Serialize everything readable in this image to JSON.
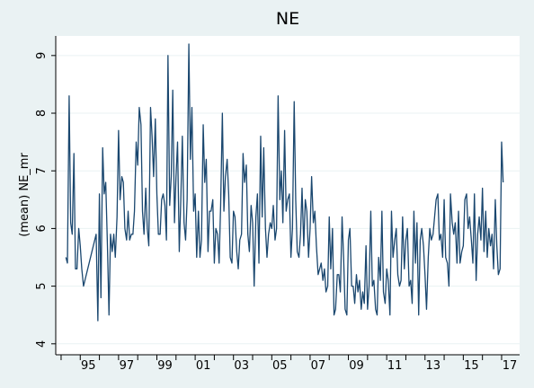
{
  "chart_data": {
    "type": "line",
    "title": "NE",
    "ylabel": "(mean) NE_mr",
    "x": [
      1994.25,
      1994.33,
      1994.42,
      1994.5,
      1994.58,
      1994.67,
      1994.75,
      1994.83,
      1994.92,
      1995.0,
      1995.08,
      1995.17,
      1995.83,
      1995.92,
      1996.0,
      1996.08,
      1996.17,
      1996.25,
      1996.33,
      1996.42,
      1996.5,
      1996.58,
      1996.67,
      1996.75,
      1996.83,
      1996.92,
      1997.0,
      1997.08,
      1997.17,
      1997.25,
      1997.33,
      1997.42,
      1997.5,
      1997.58,
      1997.67,
      1997.75,
      1997.83,
      1997.92,
      1998.0,
      1998.08,
      1998.17,
      1998.25,
      1998.33,
      1998.42,
      1998.5,
      1998.58,
      1998.67,
      1998.75,
      1998.83,
      1998.92,
      1999.0,
      1999.08,
      1999.17,
      1999.25,
      1999.33,
      1999.42,
      1999.5,
      1999.58,
      1999.67,
      1999.75,
      1999.83,
      1999.92,
      2000.0,
      2000.08,
      2000.17,
      2000.25,
      2000.33,
      2000.42,
      2000.5,
      2000.58,
      2000.67,
      2000.75,
      2000.83,
      2000.92,
      2001.0,
      2001.08,
      2001.17,
      2001.25,
      2001.33,
      2001.42,
      2001.5,
      2001.58,
      2001.67,
      2001.75,
      2001.83,
      2001.92,
      2002.0,
      2002.08,
      2002.17,
      2002.25,
      2002.33,
      2002.42,
      2002.5,
      2002.58,
      2002.67,
      2002.75,
      2002.83,
      2002.92,
      2003.0,
      2003.08,
      2003.17,
      2003.25,
      2003.33,
      2003.42,
      2003.5,
      2003.58,
      2003.67,
      2003.75,
      2003.83,
      2003.92,
      2004.0,
      2004.08,
      2004.17,
      2004.25,
      2004.33,
      2004.42,
      2004.5,
      2004.58,
      2004.67,
      2004.75,
      2004.83,
      2004.92,
      2005.0,
      2005.08,
      2005.17,
      2005.25,
      2005.33,
      2005.42,
      2005.5,
      2005.58,
      2005.67,
      2005.75,
      2005.83,
      2005.92,
      2006.0,
      2006.08,
      2006.17,
      2006.25,
      2006.33,
      2006.42,
      2006.5,
      2006.58,
      2006.67,
      2006.75,
      2006.83,
      2006.92,
      2007.0,
      2007.08,
      2007.17,
      2007.25,
      2007.33,
      2007.42,
      2007.5,
      2007.58,
      2007.67,
      2007.75,
      2007.83,
      2007.92,
      2008.0,
      2008.08,
      2008.17,
      2008.25,
      2008.33,
      2008.42,
      2008.5,
      2008.58,
      2008.67,
      2008.75,
      2008.83,
      2008.92,
      2009.0,
      2009.08,
      2009.17,
      2009.25,
      2009.33,
      2009.42,
      2009.5,
      2009.58,
      2009.67,
      2009.75,
      2009.83,
      2009.92,
      2010.0,
      2010.08,
      2010.17,
      2010.25,
      2010.33,
      2010.42,
      2010.5,
      2010.58,
      2010.67,
      2010.75,
      2010.83,
      2010.92,
      2011.0,
      2011.08,
      2011.17,
      2011.25,
      2011.33,
      2011.42,
      2011.5,
      2011.58,
      2011.67,
      2011.75,
      2011.83,
      2011.92,
      2012.0,
      2012.08,
      2012.17,
      2012.25,
      2012.33,
      2012.42,
      2012.5,
      2012.58,
      2012.67,
      2012.75,
      2012.83,
      2012.92,
      2013.0,
      2013.08,
      2013.17,
      2013.25,
      2013.33,
      2013.42,
      2013.5,
      2013.58,
      2013.67,
      2013.75,
      2013.83,
      2013.92,
      2014.0,
      2014.08,
      2014.17,
      2014.25,
      2014.33,
      2014.42,
      2014.5,
      2014.58,
      2014.67,
      2014.75,
      2014.83,
      2014.92,
      2015.0,
      2015.08,
      2015.17,
      2015.25,
      2015.33,
      2015.42,
      2015.5,
      2015.58,
      2015.67,
      2015.75,
      2015.83,
      2015.92,
      2016.0,
      2016.08,
      2016.17,
      2016.25,
      2016.33,
      2016.42,
      2016.5,
      2016.58,
      2016.67,
      2016.75,
      2016.83,
      2016.92,
      2017.0,
      2017.08
    ],
    "series": [
      {
        "color": "#1a476f",
        "values": [
          5.5,
          5.4,
          8.3,
          6.1,
          5.9,
          7.3,
          5.3,
          5.3,
          6.0,
          5.7,
          5.3,
          5.0,
          5.9,
          4.4,
          6.6,
          4.8,
          7.4,
          6.6,
          6.8,
          5.7,
          4.5,
          5.9,
          5.6,
          5.9,
          5.5,
          6.2,
          7.7,
          6.5,
          6.9,
          6.8,
          6.0,
          5.8,
          6.3,
          5.8,
          5.9,
          5.9,
          6.3,
          7.5,
          7.1,
          8.1,
          7.8,
          6.3,
          5.9,
          6.7,
          6.0,
          5.7,
          8.1,
          7.6,
          6.9,
          7.9,
          6.6,
          5.9,
          5.9,
          6.5,
          6.6,
          6.4,
          5.8,
          9.0,
          6.4,
          6.9,
          8.4,
          6.1,
          6.9,
          7.5,
          5.6,
          6.5,
          7.6,
          6.1,
          5.8,
          6.5,
          9.2,
          7.2,
          8.1,
          6.3,
          6.6,
          5.5,
          6.3,
          5.5,
          5.8,
          7.8,
          6.8,
          7.2,
          5.6,
          6.3,
          6.3,
          6.5,
          5.4,
          6.0,
          5.9,
          5.4,
          6.4,
          8.0,
          6.3,
          6.9,
          7.2,
          6.6,
          5.5,
          5.4,
          6.3,
          6.2,
          5.6,
          5.3,
          5.8,
          5.9,
          7.3,
          6.8,
          7.1,
          5.9,
          5.6,
          6.4,
          6.1,
          5.0,
          6.2,
          6.6,
          5.4,
          7.6,
          6.2,
          7.4,
          6.0,
          5.5,
          5.9,
          6.1,
          6.0,
          6.4,
          5.8,
          6.0,
          8.3,
          6.5,
          7.0,
          6.1,
          7.7,
          6.3,
          6.5,
          6.6,
          5.5,
          6.0,
          8.2,
          6.5,
          5.6,
          5.5,
          5.9,
          6.7,
          5.7,
          6.5,
          6.3,
          5.5,
          6.0,
          6.9,
          6.1,
          6.3,
          5.7,
          5.2,
          5.3,
          5.4,
          5.1,
          5.3,
          4.9,
          5.0,
          6.2,
          5.3,
          6.0,
          4.5,
          4.6,
          5.2,
          5.2,
          4.9,
          6.2,
          5.5,
          4.6,
          4.5,
          5.8,
          6.0,
          5.0,
          5.0,
          4.7,
          5.2,
          4.9,
          5.1,
          4.6,
          4.9,
          4.7,
          5.7,
          4.6,
          5.0,
          6.3,
          5.0,
          5.1,
          4.6,
          4.5,
          5.5,
          5.1,
          6.3,
          4.9,
          4.7,
          5.3,
          5.1,
          4.5,
          6.3,
          5.5,
          5.8,
          6.0,
          5.2,
          5.0,
          5.1,
          6.2,
          5.3,
          5.8,
          6.0,
          5.0,
          5.1,
          4.7,
          6.3,
          5.4,
          6.1,
          4.5,
          5.8,
          6.0,
          5.7,
          5.2,
          4.6,
          5.5,
          6.0,
          5.8,
          5.9,
          6.2,
          6.5,
          6.6,
          5.8,
          5.9,
          5.5,
          6.5,
          5.5,
          5.4,
          5.0,
          6.6,
          6.1,
          5.9,
          6.1,
          5.4,
          6.3,
          5.4,
          5.6,
          5.7,
          6.5,
          6.6,
          6.0,
          6.2,
          5.8,
          5.4,
          6.6,
          5.1,
          5.9,
          6.2,
          5.8,
          6.7,
          5.6,
          6.3,
          5.5,
          6.0,
          5.7,
          5.9,
          5.3,
          6.5,
          5.7,
          5.2,
          5.3,
          7.5,
          6.8
        ]
      }
    ],
    "xlim": [
      1993.72,
      2017.94
    ],
    "ylim": [
      3.81,
      9.34
    ],
    "yticks": [
      4,
      5,
      6,
      7,
      8,
      9
    ],
    "xticks": [
      {
        "value": 1995,
        "label": "95"
      },
      {
        "value": 1997,
        "label": "97"
      },
      {
        "value": 1999,
        "label": "99"
      },
      {
        "value": 2001,
        "label": "01"
      },
      {
        "value": 2003,
        "label": "03"
      },
      {
        "value": 2005,
        "label": "05"
      },
      {
        "value": 2007,
        "label": "07"
      },
      {
        "value": 2009,
        "label": "09"
      },
      {
        "value": 2011,
        "label": "11"
      },
      {
        "value": 2013,
        "label": "13"
      },
      {
        "value": 2015,
        "label": "15"
      },
      {
        "value": 2017,
        "label": "17"
      }
    ],
    "xminorticks": [
      1994,
      1996,
      1998,
      2000,
      2002,
      2004,
      2006,
      2008,
      2010,
      2012,
      2014,
      2016
    ],
    "grid": true
  }
}
